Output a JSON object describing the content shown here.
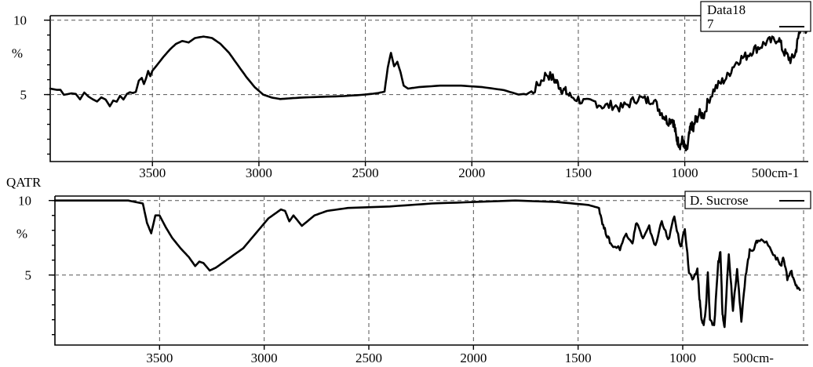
{
  "chart_data": [
    {
      "type": "line",
      "title": "",
      "xlabel": "",
      "ylabel": "%",
      "left_label": "",
      "x_unit_label": "500cm-1",
      "xlim": [
        3980,
        420
      ],
      "ylim": [
        0.5,
        10.3
      ],
      "x_ticks": [
        {
          "v": 3500,
          "label": "3500"
        },
        {
          "v": 3000,
          "label": "3000"
        },
        {
          "v": 2500,
          "label": "2500"
        },
        {
          "v": 2000,
          "label": "2000"
        },
        {
          "v": 1500,
          "label": "1500"
        },
        {
          "v": 1000,
          "label": "1000"
        }
      ],
      "y_ticks": [
        {
          "v": 10,
          "label": "10"
        },
        {
          "v": 5,
          "label": "5"
        }
      ],
      "legend": [
        {
          "name": "Data18",
          "sub": "7"
        }
      ],
      "series": [
        {
          "name": "Data18",
          "x": [
            3980,
            3900,
            3800,
            3700,
            3620,
            3550,
            3500,
            3450,
            3420,
            3390,
            3360,
            3330,
            3300,
            3260,
            3220,
            3180,
            3140,
            3100,
            3060,
            3020,
            2980,
            2940,
            2900,
            2850,
            2800,
            2700,
            2600,
            2500,
            2440,
            2410,
            2395,
            2380,
            2365,
            2350,
            2335,
            2320,
            2300,
            2250,
            2150,
            2050,
            1950,
            1850,
            1780,
            1720,
            1680,
            1650,
            1620,
            1600,
            1580,
            1560,
            1540,
            1500,
            1460,
            1420,
            1380,
            1340,
            1300,
            1260,
            1220,
            1180,
            1150,
            1120,
            1100,
            1080,
            1060,
            1050,
            1040,
            1030,
            1020,
            1010,
            1000,
            990,
            980,
            970,
            960,
            950,
            930,
            910,
            890,
            860,
            830,
            800,
            770,
            740,
            710,
            680,
            650,
            620,
            590,
            560,
            540,
            520,
            500,
            480,
            470,
            460,
            450,
            440,
            430,
            420
          ],
          "y": [
            5.4,
            5.2,
            4.8,
            4.5,
            5.0,
            5.8,
            6.6,
            7.5,
            8.0,
            8.4,
            8.6,
            8.5,
            8.8,
            8.9,
            8.8,
            8.4,
            7.8,
            7.0,
            6.2,
            5.5,
            5.0,
            4.8,
            4.7,
            4.75,
            4.8,
            4.85,
            4.9,
            5.0,
            5.1,
            5.2,
            6.8,
            7.8,
            6.9,
            7.2,
            6.5,
            5.6,
            5.4,
            5.5,
            5.6,
            5.6,
            5.5,
            5.3,
            5.0,
            5.1,
            5.8,
            6.4,
            6.1,
            5.8,
            5.4,
            5.2,
            4.9,
            4.7,
            4.4,
            4.5,
            4.2,
            4.3,
            4.1,
            4.4,
            4.8,
            4.6,
            4.7,
            4.0,
            3.6,
            3.2,
            3.4,
            3.0,
            2.1,
            1.8,
            1.6,
            2.0,
            1.4,
            1.2,
            2.2,
            3.0,
            2.6,
            3.3,
            3.7,
            3.6,
            4.6,
            5.4,
            5.8,
            6.2,
            7.0,
            7.4,
            7.6,
            8.0,
            8.2,
            8.5,
            8.6,
            8.8,
            8.0,
            7.6,
            7.3,
            7.8,
            8.6,
            9.4,
            9.6,
            10.0,
            9.3,
            9.8
          ]
        }
      ]
    },
    {
      "type": "line",
      "title": "",
      "xlabel": "",
      "ylabel": "%",
      "left_label": "QATR",
      "x_unit_label": "500cm-",
      "xlim": [
        4000,
        400
      ],
      "ylim": [
        0.3,
        10.3
      ],
      "x_ticks": [
        {
          "v": 3500,
          "label": "3500"
        },
        {
          "v": 3000,
          "label": "3000"
        },
        {
          "v": 2500,
          "label": "2500"
        },
        {
          "v": 2000,
          "label": "2000"
        },
        {
          "v": 1500,
          "label": "1500"
        },
        {
          "v": 1000,
          "label": "1000"
        }
      ],
      "y_ticks": [
        {
          "v": 10,
          "label": "10"
        },
        {
          "v": 5,
          "label": "5"
        }
      ],
      "legend": [
        {
          "name": "D. Sucrose",
          "sub": ""
        }
      ],
      "series": [
        {
          "name": "D. Sucrose",
          "x": [
            4000,
            3800,
            3650,
            3580,
            3560,
            3540,
            3520,
            3500,
            3470,
            3440,
            3400,
            3360,
            3330,
            3310,
            3290,
            3260,
            3230,
            3200,
            3160,
            3100,
            3040,
            2980,
            2940,
            2920,
            2900,
            2880,
            2860,
            2820,
            2760,
            2700,
            2600,
            2400,
            2200,
            2000,
            1800,
            1600,
            1450,
            1400,
            1380,
            1360,
            1340,
            1300,
            1270,
            1240,
            1220,
            1190,
            1160,
            1130,
            1100,
            1070,
            1040,
            1010,
            990,
            970,
            950,
            930,
            920,
            910,
            900,
            890,
            880,
            870,
            850,
            830,
            820,
            810,
            800,
            780,
            760,
            740,
            720,
            700,
            680,
            660,
            640,
            600,
            560,
            530,
            520,
            500,
            480,
            460,
            440
          ],
          "y": [
            10.0,
            10.0,
            10.0,
            9.8,
            8.5,
            7.8,
            9.0,
            9.0,
            8.2,
            7.5,
            6.8,
            6.2,
            5.6,
            5.9,
            5.8,
            5.3,
            5.5,
            5.8,
            6.2,
            6.8,
            7.8,
            8.8,
            9.2,
            9.4,
            9.3,
            8.6,
            9.0,
            8.3,
            9.0,
            9.3,
            9.5,
            9.6,
            9.8,
            9.9,
            10.0,
            9.9,
            9.7,
            9.5,
            8.3,
            7.6,
            7.0,
            6.8,
            7.8,
            7.2,
            8.6,
            7.4,
            8.2,
            6.9,
            8.7,
            7.3,
            8.9,
            6.8,
            8.2,
            5.2,
            4.6,
            5.4,
            3.5,
            2.0,
            1.6,
            2.6,
            5.2,
            2.1,
            1.5,
            5.8,
            6.6,
            2.4,
            1.6,
            6.5,
            2.7,
            5.5,
            1.8,
            5.0,
            6.6,
            6.8,
            7.4,
            7.2,
            6.3,
            5.6,
            6.2,
            4.8,
            5.2,
            4.4,
            4.0
          ]
        }
      ]
    }
  ]
}
